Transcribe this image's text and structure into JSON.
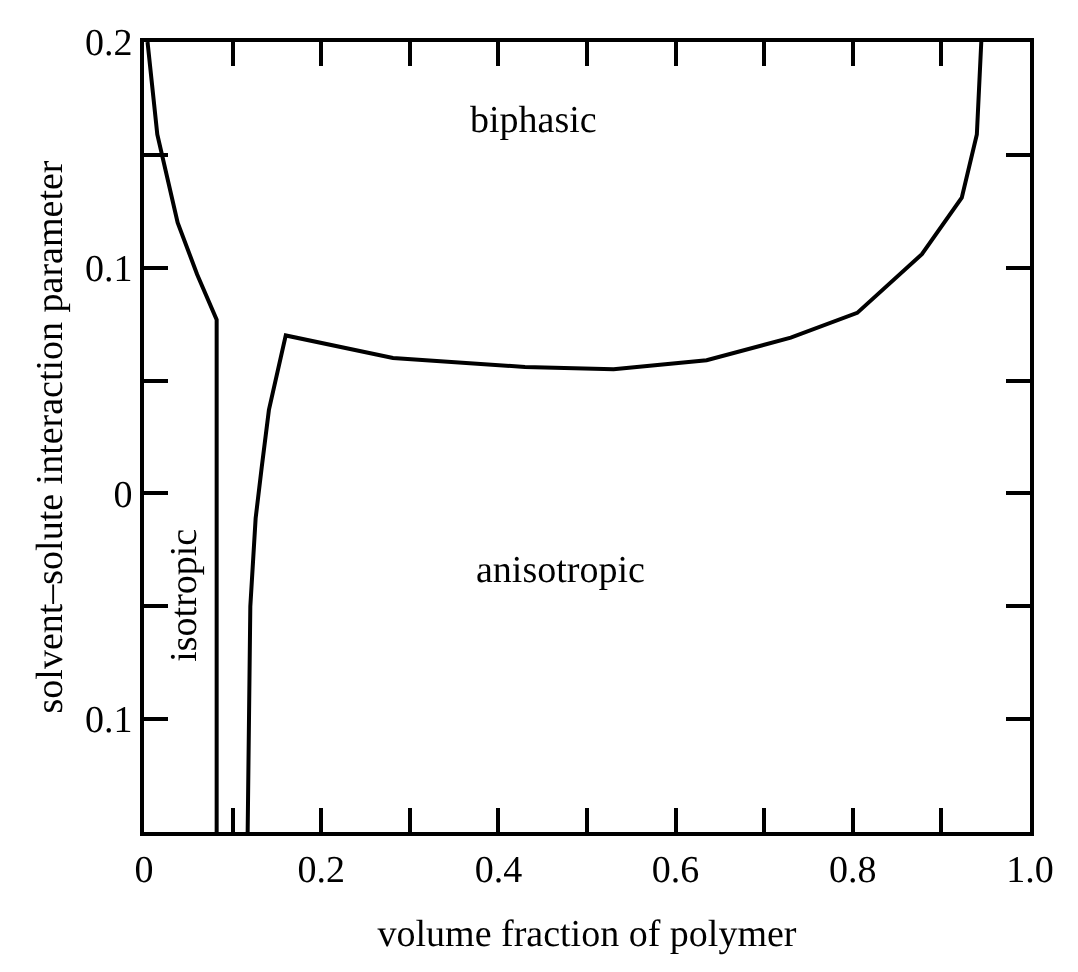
{
  "chart_data": {
    "type": "line",
    "xlabel": "volume fraction of polymer",
    "ylabel": "solvent–solute interaction parameter",
    "series": [
      {
        "color": "#000000",
        "x": [
          0.004,
          0.015,
          0.038,
          0.06,
          0.082,
          0.082
        ],
        "values": [
          0.2,
          0.159,
          0.12,
          0.097,
          0.077,
          -0.15
        ]
      },
      {
        "color": "#000000",
        "x": [
          0.117,
          0.12,
          0.126,
          0.133,
          0.141,
          0.16,
          0.281,
          0.43,
          0.53,
          0.635,
          0.73,
          0.805,
          0.878,
          0.923,
          0.94,
          0.945
        ],
        "values": [
          -0.15,
          -0.05,
          -0.011,
          0.012,
          0.037,
          0.07,
          0.06,
          0.056,
          0.055,
          0.059,
          0.069,
          0.08,
          0.106,
          0.131,
          0.159,
          0.2
        ]
      }
    ],
    "annotations": [
      "biphasic",
      "anisotropic",
      "isotropic"
    ],
    "xlim": [
      0,
      1.0
    ],
    "ylim": [
      -0.15,
      0.2
    ],
    "xticks": [
      0,
      {
        "value": 0.1,
        "label": null
      },
      0.2,
      {
        "value": 0.3,
        "label": null
      },
      0.4,
      {
        "value": 0.5,
        "label": null
      },
      0.6,
      {
        "value": 0.7,
        "label": null
      },
      0.8,
      {
        "value": 0.9,
        "label": null
      },
      {
        "value": 1.0,
        "label": "1.0"
      }
    ],
    "yticks": [
      {
        "value": -0.15,
        "label": null
      },
      {
        "value": -0.1,
        "label": "0.1"
      },
      {
        "value": -0.05,
        "label": null
      },
      0,
      {
        "value": 0.05,
        "label": null
      },
      0.1,
      {
        "value": 0.15,
        "label": null
      },
      0.2
    ],
    "line_style": "solid",
    "marker": "none"
  }
}
